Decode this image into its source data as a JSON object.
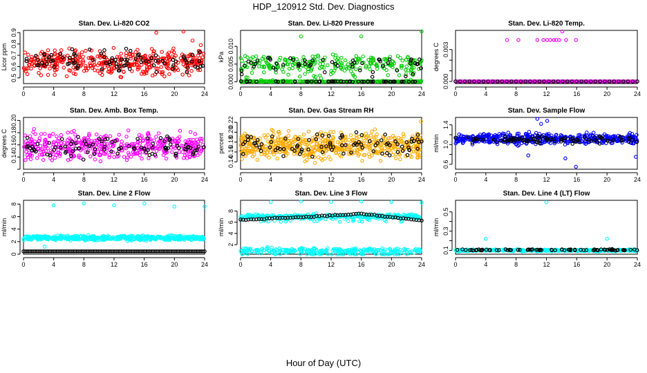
{
  "page": {
    "title": "HDP_120912  Std. Dev. Diagnostics",
    "xlabel": "Hour of Day (UTC)"
  },
  "chart_data": [
    {
      "type": "scatter",
      "title": "Stan. Dev. Li-820 CO2",
      "ylabel": "Licor ppm",
      "xlim": [
        0,
        24
      ],
      "ylim": [
        0.45,
        0.92
      ],
      "xticks": [
        0,
        4,
        8,
        12,
        16,
        20,
        24
      ],
      "yticks": [
        0.5,
        0.6,
        0.7,
        0.8,
        0.9
      ],
      "ytick_labels": [
        "0.5",
        "0.6",
        "0.7",
        "0.8",
        "0.9"
      ],
      "color": "#ff0000",
      "ref_color": "#000000",
      "pattern": {
        "kind": "noise",
        "base": 0.64,
        "spread": 0.09,
        "n": 420
      },
      "ref_pattern": {
        "kind": "noise",
        "base": 0.65,
        "spread": 0.08,
        "n": 90
      },
      "extras": [
        [
          17.6,
          0.9
        ],
        [
          21.2,
          0.91
        ],
        [
          22.4,
          0.83
        ],
        [
          23.5,
          0.79
        ]
      ]
    },
    {
      "type": "scatter",
      "title": "Stan. Dev. Li-820 Pressure",
      "ylabel": "kPa",
      "xlim": [
        0,
        24
      ],
      "ylim": [
        -0.0005,
        0.0145
      ],
      "xticks": [
        0,
        4,
        8,
        12,
        16,
        20,
        24
      ],
      "yticks": [
        0,
        0.005,
        0.01
      ],
      "ytick_labels": [
        "0.000",
        "0.005",
        "0.010"
      ],
      "color": "#00cc00",
      "ref_color": "#000000",
      "pattern": {
        "kind": "band",
        "levels": [
          0,
          0.0054
        ],
        "jitter": 0.0018,
        "n": 520
      },
      "ref_pattern": {
        "kind": "band",
        "levels": [
          0,
          0.0054
        ],
        "jitter": 0.0014,
        "n": 110
      },
      "extras": [
        [
          8,
          0.0128
        ],
        [
          16,
          0.0128
        ],
        [
          24,
          0.0142
        ]
      ]
    },
    {
      "type": "scatter",
      "title": "Stan. Dev. Li-820 Temp.",
      "ylabel": "degrees C",
      "xlim": [
        0,
        24
      ],
      "ylim": [
        -0.0002,
        0.0048
      ],
      "xticks": [
        0,
        4,
        8,
        12,
        16,
        20,
        24
      ],
      "yticks": [
        0,
        0.001,
        0.002,
        0.003
      ],
      "ytick_labels": [
        "0.000",
        "",
        "",
        "0.003"
      ],
      "color": "#ff00ff",
      "ref_color": "#000000",
      "pattern": {
        "kind": "flat",
        "value": 0,
        "n": 150
      },
      "ref_pattern": {
        "kind": "flat",
        "value": 0,
        "n": 40
      },
      "extras": [
        [
          6.8,
          0.0039
        ],
        [
          8.3,
          0.0039
        ],
        [
          10.8,
          0.0039
        ],
        [
          11.6,
          0.0039
        ],
        [
          12.1,
          0.0039
        ],
        [
          12.5,
          0.0039
        ],
        [
          13.0,
          0.0039
        ],
        [
          13.3,
          0.0039
        ],
        [
          13.7,
          0.0039
        ],
        [
          14.1,
          0.0047
        ],
        [
          14.6,
          0.0039
        ],
        [
          15.9,
          0.0039
        ]
      ]
    },
    {
      "type": "scatter",
      "title": "Stan. Dev. Amb. Box Temp.",
      "ylabel": "degrees C",
      "xlim": [
        0,
        24
      ],
      "ylim": [
        0.12,
        0.205
      ],
      "xticks": [
        0,
        4,
        8,
        12,
        16,
        20,
        24
      ],
      "yticks": [
        0.12,
        0.14,
        0.16,
        0.18,
        0.2
      ],
      "ytick_labels": [
        "",
        "0.14",
        "0.16",
        "0.18",
        "0.20"
      ],
      "color": "#ff00ff",
      "ref_color": "#000000",
      "pattern": {
        "kind": "noise",
        "base": 0.158,
        "spread": 0.018,
        "n": 440
      },
      "ref_pattern": {
        "kind": "noise",
        "base": 0.158,
        "spread": 0.016,
        "n": 90
      },
      "extras": []
    },
    {
      "type": "scatter",
      "title": "Stan. Dev. Gas Stream RH",
      "ylabel": "percent",
      "xlim": [
        0,
        24
      ],
      "ylim": [
        0.125,
        0.23
      ],
      "xticks": [
        0,
        4,
        8,
        12,
        16,
        20,
        24
      ],
      "yticks": [
        0.14,
        0.16,
        0.18,
        0.2,
        0.22
      ],
      "ytick_labels": [
        "0.14",
        "0.16",
        "0.18",
        "0.20",
        "0.22"
      ],
      "color": "#ffaa00",
      "ref_color": "#000000",
      "pattern": {
        "kind": "noise",
        "base": 0.172,
        "spread": 0.022,
        "n": 560
      },
      "ref_pattern": {
        "kind": "noise",
        "base": 0.175,
        "spread": 0.02,
        "n": 90
      },
      "extras": [
        [
          23.9,
          0.222
        ]
      ]
    },
    {
      "type": "scatter",
      "title": "Stan. Dev. Sample Flow",
      "ylabel": "ml/min",
      "xlim": [
        0,
        24
      ],
      "ylim": [
        0.5,
        1.55
      ],
      "xticks": [
        0,
        4,
        8,
        12,
        16,
        20,
        24
      ],
      "yticks": [
        0.6,
        0.8,
        1.0,
        1.2,
        1.4
      ],
      "ytick_labels": [
        "0.6",
        "",
        "1.0",
        "",
        "1.4"
      ],
      "color": "#0000ff",
      "ref_color": "#000000",
      "pattern": {
        "kind": "noise",
        "base": 1.12,
        "spread": 0.09,
        "n": 500
      },
      "ref_pattern": {
        "kind": "noise",
        "base": 1.1,
        "spread": 0.06,
        "n": 90
      },
      "extras": [
        [
          10.8,
          1.52
        ],
        [
          11.3,
          1.42
        ],
        [
          12.1,
          1.48
        ],
        [
          15.9,
          0.55
        ],
        [
          14.5,
          0.72
        ],
        [
          9.6,
          0.78
        ],
        [
          23.8,
          0.75
        ]
      ]
    },
    {
      "type": "scatter",
      "title": "Stan. Dev. Line 2 Flow",
      "ylabel": "ml/min",
      "xlim": [
        0,
        24
      ],
      "ylim": [
        0,
        8.6
      ],
      "xticks": [
        0,
        4,
        8,
        12,
        16,
        20,
        24
      ],
      "yticks": [
        0,
        2,
        4,
        6,
        8
      ],
      "ytick_labels": [
        "0",
        "2",
        "4",
        "6",
        "8"
      ],
      "color": "#00ffff",
      "ref_color": "#000000",
      "pattern": {
        "kind": "band",
        "levels": [
          2.6
        ],
        "jitter": 0.3,
        "n": 520
      },
      "ref_pattern": {
        "kind": "flat",
        "value": 0.45,
        "n": 110
      },
      "extras": [
        [
          4,
          7.8
        ],
        [
          8,
          8.1
        ],
        [
          12,
          7.8
        ],
        [
          16,
          8.1
        ],
        [
          20,
          7.6
        ],
        [
          24,
          7.6
        ],
        [
          2.8,
          1.2
        ],
        [
          19.3,
          3.0
        ]
      ]
    },
    {
      "type": "scatter",
      "title": "Stan. Dev. Line 3 Flow",
      "ylabel": "ml/min",
      "xlim": [
        0,
        24
      ],
      "ylim": [
        0.3,
        9.9
      ],
      "xticks": [
        0,
        4,
        8,
        12,
        16,
        20,
        24
      ],
      "yticks": [
        2,
        4,
        6,
        8
      ],
      "ytick_labels": [
        "2",
        "4",
        "6",
        "8"
      ],
      "color": "#00ffff",
      "ref_color": "#000000",
      "pattern": {
        "kind": "band",
        "levels": [
          1.0,
          7.1
        ],
        "jitter": 0.35,
        "n": 560
      },
      "ref_pattern": {
        "kind": "curve",
        "points": [
          [
            0,
            6.4
          ],
          [
            4,
            6.7
          ],
          [
            8,
            6.9
          ],
          [
            12,
            7.2
          ],
          [
            16,
            7.5
          ],
          [
            20,
            6.9
          ],
          [
            24,
            6.3
          ]
        ],
        "n": 70
      },
      "extras": [
        [
          4,
          9.6
        ],
        [
          8,
          9.7
        ],
        [
          12,
          9.6
        ],
        [
          16,
          9.7
        ],
        [
          20,
          9.6
        ],
        [
          24,
          9.5
        ]
      ]
    },
    {
      "type": "scatter",
      "title": "Stan. Dev. Line 4 (LT) Flow",
      "ylabel": "ml/min",
      "xlim": [
        0,
        24
      ],
      "ylim": [
        0.06,
        0.62
      ],
      "xticks": [
        0,
        4,
        8,
        12,
        16,
        20,
        24
      ],
      "yticks": [
        0.1,
        0.2,
        0.3,
        0.4,
        0.5
      ],
      "ytick_labels": [
        "0.1",
        "",
        "0.3",
        "",
        "0.5"
      ],
      "color": "#00ffff",
      "ref_color": "#000000",
      "pattern": {
        "kind": "band",
        "levels": [
          0.1
        ],
        "jitter": 0.008,
        "n": 400
      },
      "ref_pattern": {
        "kind": "band",
        "levels": [
          0.105
        ],
        "jitter": 0.006,
        "n": 80
      },
      "extras": [
        [
          12,
          0.6
        ],
        [
          4,
          0.22
        ],
        [
          20,
          0.22
        ]
      ]
    }
  ]
}
